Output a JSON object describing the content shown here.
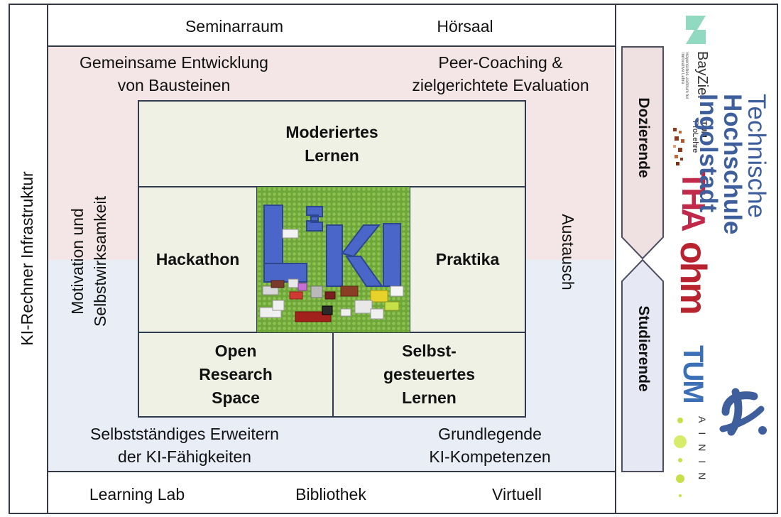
{
  "outer": {
    "left_label": "KI-Rechner Infrastruktur"
  },
  "top_bar": {
    "left": "Seminarraum",
    "right": "Hörsaal"
  },
  "bottom_bar": {
    "left": "Learning Lab",
    "center": "Bibliothek",
    "right": "Virtuell"
  },
  "corners": {
    "top_left_line1": "Gemeinsame Entwicklung",
    "top_left_line2": "von Bausteinen",
    "top_right_line1": "Peer-Coaching &",
    "top_right_line2": "zielgerichtete Evaluation",
    "bottom_left_line1": "Selbstständiges Erweitern",
    "bottom_left_line2": "der KI-Fähigkeiten",
    "bottom_right_line1": "Grundlegende",
    "bottom_right_line2": "KI-Kompetenzen"
  },
  "sides": {
    "left_line1": "Motivation und",
    "left_line2": "Selbstwirksamkeit",
    "right": "Austausch"
  },
  "boxes": {
    "top_line1": "Moderiertes",
    "top_line2": "Lernen",
    "left": "Hackathon",
    "right": "Praktika",
    "bottom_left_line1": "Open",
    "bottom_left_line2": "Research",
    "bottom_left_line3": "Space",
    "bottom_right_line1": "Selbst-",
    "bottom_right_line2": "gesteuertes",
    "bottom_right_line3": "Lernen"
  },
  "center_logo": {
    "base": "L",
    "sup": "2",
    "rest": "KI"
  },
  "roles": {
    "top": "Dozierende",
    "bottom": "Studierende"
  },
  "logos": {
    "bayziel": "BayZiel",
    "bayziel_sub": "Bayerisches Zentrum für Innovative Lehre",
    "tum_prolehre_a": "TUM",
    "tum_prolehre_b": "ProLehre",
    "tha": "THA",
    "ohm": "ohm",
    "tum": "TUM",
    "ainin": "AININ",
    "thi_line1": "Technische",
    "thi_line2": "Hochschule",
    "thi_line3": "Ingolstadt"
  },
  "colors": {
    "pink_band": "#f4e6e7",
    "blue_band": "#e8edf6",
    "box_fill": "#eef1e4",
    "lego_green": "#6fa63a",
    "lego_blue": "#4a66c8",
    "tha_red": "#c0294a",
    "ohm_red": "#b8232f",
    "tum_blue": "#3b6fb6",
    "thi_blue": "#3e5f9c",
    "ainin_green": "#c6e04a",
    "bayziel_teal": "#7ed3b6"
  }
}
